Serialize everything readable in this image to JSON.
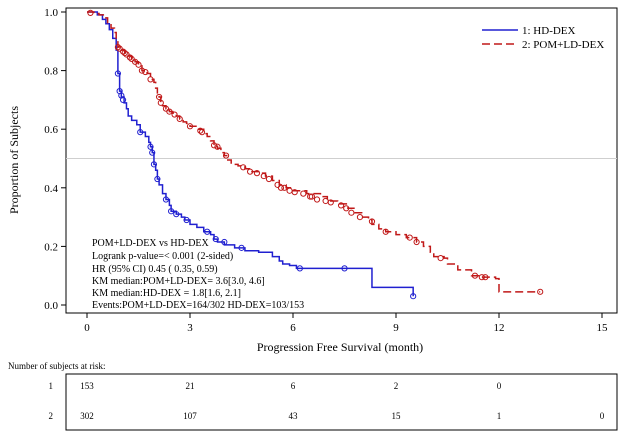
{
  "chart_data": {
    "type": "line",
    "subtype": "kaplan-meier",
    "xlabel": "Progression Free Survival (month)",
    "ylabel": "Proportion of Subjects",
    "xlim": [
      0,
      15
    ],
    "ylim": [
      0,
      1.0
    ],
    "xticks": [
      0,
      3,
      6,
      9,
      12,
      15
    ],
    "yticks": [
      0.0,
      0.2,
      0.4,
      0.6,
      0.8,
      1.0
    ],
    "xtick_labels": [
      "0",
      "3",
      "6",
      "9",
      "12",
      "15"
    ],
    "ytick_labels": [
      "0.0",
      "0.2",
      "0.4",
      "0.6",
      "0.8",
      "1.0"
    ],
    "reference_line_y": 0.5,
    "legend_position": "top-right",
    "series": [
      {
        "name": "1: HD-DEX",
        "color": "#2020d0",
        "dash": "solid",
        "steps": [
          [
            0,
            1.0
          ],
          [
            0.3,
            0.99
          ],
          [
            0.45,
            0.975
          ],
          [
            0.55,
            0.96
          ],
          [
            0.65,
            0.94
          ],
          [
            0.75,
            0.91
          ],
          [
            0.85,
            0.87
          ],
          [
            0.9,
            0.79
          ],
          [
            0.95,
            0.73
          ],
          [
            1.0,
            0.71
          ],
          [
            1.08,
            0.69
          ],
          [
            1.15,
            0.67
          ],
          [
            1.2,
            0.645
          ],
          [
            1.3,
            0.63
          ],
          [
            1.45,
            0.615
          ],
          [
            1.55,
            0.59
          ],
          [
            1.7,
            0.575
          ],
          [
            1.8,
            0.555
          ],
          [
            1.85,
            0.54
          ],
          [
            1.9,
            0.52
          ],
          [
            1.95,
            0.48
          ],
          [
            2.0,
            0.46
          ],
          [
            2.05,
            0.43
          ],
          [
            2.1,
            0.41
          ],
          [
            2.2,
            0.38
          ],
          [
            2.3,
            0.36
          ],
          [
            2.4,
            0.34
          ],
          [
            2.45,
            0.32
          ],
          [
            2.6,
            0.31
          ],
          [
            2.75,
            0.3
          ],
          [
            2.85,
            0.29
          ],
          [
            3.0,
            0.275
          ],
          [
            3.2,
            0.265
          ],
          [
            3.4,
            0.25
          ],
          [
            3.6,
            0.24
          ],
          [
            3.7,
            0.225
          ],
          [
            3.8,
            0.215
          ],
          [
            4.0,
            0.205
          ],
          [
            4.3,
            0.195
          ],
          [
            4.6,
            0.185
          ],
          [
            5.0,
            0.18
          ],
          [
            5.4,
            0.165
          ],
          [
            5.6,
            0.15
          ],
          [
            5.7,
            0.14
          ],
          [
            5.9,
            0.135
          ],
          [
            6.1,
            0.125
          ],
          [
            8.3,
            0.06
          ],
          [
            9.5,
            0.03
          ]
        ],
        "end_x": 9.5,
        "censored": [
          [
            0.9,
            0.79
          ],
          [
            0.95,
            0.73
          ],
          [
            1.0,
            0.715
          ],
          [
            1.05,
            0.7
          ],
          [
            1.55,
            0.59
          ],
          [
            1.85,
            0.54
          ],
          [
            1.9,
            0.52
          ],
          [
            1.95,
            0.48
          ],
          [
            2.05,
            0.43
          ],
          [
            2.3,
            0.36
          ],
          [
            2.45,
            0.32
          ],
          [
            2.6,
            0.31
          ],
          [
            2.9,
            0.29
          ],
          [
            3.5,
            0.25
          ],
          [
            3.75,
            0.225
          ],
          [
            4.0,
            0.215
          ],
          [
            4.5,
            0.195
          ],
          [
            6.2,
            0.125
          ],
          [
            7.5,
            0.125
          ],
          [
            9.5,
            0.03
          ]
        ]
      },
      {
        "name": "2: POM+LD-DEX",
        "color": "#c01818",
        "dash": "dashed",
        "steps": [
          [
            0,
            1.0
          ],
          [
            0.2,
            0.995
          ],
          [
            0.35,
            0.99
          ],
          [
            0.5,
            0.98
          ],
          [
            0.6,
            0.96
          ],
          [
            0.7,
            0.945
          ],
          [
            0.8,
            0.93
          ],
          [
            0.85,
            0.91
          ],
          [
            0.9,
            0.88
          ],
          [
            1.0,
            0.87
          ],
          [
            1.1,
            0.86
          ],
          [
            1.2,
            0.85
          ],
          [
            1.3,
            0.84
          ],
          [
            1.4,
            0.83
          ],
          [
            1.5,
            0.82
          ],
          [
            1.6,
            0.8
          ],
          [
            1.75,
            0.79
          ],
          [
            1.85,
            0.77
          ],
          [
            1.95,
            0.76
          ],
          [
            2.0,
            0.74
          ],
          [
            2.05,
            0.72
          ],
          [
            2.1,
            0.71
          ],
          [
            2.15,
            0.69
          ],
          [
            2.2,
            0.68
          ],
          [
            2.3,
            0.67
          ],
          [
            2.4,
            0.66
          ],
          [
            2.5,
            0.655
          ],
          [
            2.6,
            0.645
          ],
          [
            2.7,
            0.635
          ],
          [
            2.8,
            0.625
          ],
          [
            2.9,
            0.62
          ],
          [
            3.0,
            0.61
          ],
          [
            3.2,
            0.6
          ],
          [
            3.4,
            0.585
          ],
          [
            3.5,
            0.575
          ],
          [
            3.6,
            0.56
          ],
          [
            3.7,
            0.545
          ],
          [
            3.8,
            0.535
          ],
          [
            3.9,
            0.52
          ],
          [
            4.0,
            0.51
          ],
          [
            4.1,
            0.495
          ],
          [
            4.2,
            0.48
          ],
          [
            4.4,
            0.475
          ],
          [
            4.6,
            0.465
          ],
          [
            4.8,
            0.455
          ],
          [
            5.0,
            0.45
          ],
          [
            5.2,
            0.44
          ],
          [
            5.4,
            0.425
          ],
          [
            5.6,
            0.41
          ],
          [
            5.8,
            0.4
          ],
          [
            6.0,
            0.39
          ],
          [
            6.4,
            0.38
          ],
          [
            6.8,
            0.37
          ],
          [
            7.0,
            0.355
          ],
          [
            7.3,
            0.345
          ],
          [
            7.6,
            0.33
          ],
          [
            7.8,
            0.315
          ],
          [
            8.0,
            0.3
          ],
          [
            8.2,
            0.29
          ],
          [
            8.3,
            0.275
          ],
          [
            8.5,
            0.26
          ],
          [
            8.7,
            0.25
          ],
          [
            9.0,
            0.24
          ],
          [
            9.3,
            0.23
          ],
          [
            9.6,
            0.215
          ],
          [
            9.8,
            0.2
          ],
          [
            10.0,
            0.18
          ],
          [
            10.1,
            0.165
          ],
          [
            10.4,
            0.16
          ],
          [
            10.5,
            0.14
          ],
          [
            10.8,
            0.12
          ],
          [
            11.2,
            0.1
          ],
          [
            11.5,
            0.095
          ],
          [
            11.9,
            0.09
          ],
          [
            12.0,
            0.045
          ],
          [
            13.2,
            0.045
          ]
        ],
        "end_x": 13.2,
        "censored": [
          [
            0.1,
            0.997
          ],
          [
            0.9,
            0.88
          ],
          [
            0.95,
            0.875
          ],
          [
            1.05,
            0.865
          ],
          [
            1.1,
            0.86
          ],
          [
            1.15,
            0.855
          ],
          [
            1.25,
            0.845
          ],
          [
            1.3,
            0.84
          ],
          [
            1.4,
            0.83
          ],
          [
            1.5,
            0.82
          ],
          [
            1.6,
            0.8
          ],
          [
            1.7,
            0.795
          ],
          [
            1.85,
            0.77
          ],
          [
            2.1,
            0.71
          ],
          [
            2.15,
            0.69
          ],
          [
            2.3,
            0.67
          ],
          [
            2.4,
            0.66
          ],
          [
            2.55,
            0.65
          ],
          [
            2.7,
            0.635
          ],
          [
            3.0,
            0.61
          ],
          [
            3.3,
            0.595
          ],
          [
            3.35,
            0.59
          ],
          [
            3.7,
            0.545
          ],
          [
            3.8,
            0.54
          ],
          [
            4.05,
            0.51
          ],
          [
            4.55,
            0.47
          ],
          [
            4.75,
            0.455
          ],
          [
            4.95,
            0.45
          ],
          [
            5.15,
            0.44
          ],
          [
            5.3,
            0.43
          ],
          [
            5.55,
            0.41
          ],
          [
            5.65,
            0.4
          ],
          [
            5.75,
            0.4
          ],
          [
            5.9,
            0.39
          ],
          [
            6.05,
            0.385
          ],
          [
            6.3,
            0.38
          ],
          [
            6.5,
            0.37
          ],
          [
            6.55,
            0.37
          ],
          [
            6.7,
            0.36
          ],
          [
            6.95,
            0.355
          ],
          [
            7.1,
            0.35
          ],
          [
            7.4,
            0.34
          ],
          [
            7.55,
            0.33
          ],
          [
            7.7,
            0.315
          ],
          [
            7.95,
            0.3
          ],
          [
            8.3,
            0.285
          ],
          [
            8.7,
            0.25
          ],
          [
            9.4,
            0.23
          ],
          [
            9.6,
            0.215
          ],
          [
            10.3,
            0.16
          ],
          [
            11.3,
            0.1
          ],
          [
            11.5,
            0.095
          ],
          [
            11.6,
            0.095
          ],
          [
            13.2,
            0.045
          ]
        ]
      }
    ],
    "statistics": [
      "POM+LD-DEX vs HD-DEX",
      "Logrank p-value=< 0.001 (2-sided)",
      "HR (95% CI)   0.45 ( 0.35,  0.59)",
      "KM median:POM+LD-DEX=   3.6[3.0, 4.6]",
      "KM median:HD-DEX      =   1.8[1.6, 2.1]",
      "Events:POM+LD-DEX=164/302 HD-DEX=103/153"
    ],
    "risk_table": {
      "title": "Number of subjects at risk:",
      "rows": [
        {
          "label": "1",
          "counts": [
            "153",
            "21",
            "6",
            "2",
            "0"
          ]
        },
        {
          "label": "2",
          "counts": [
            "302",
            "107",
            "43",
            "15",
            "1",
            "0"
          ]
        }
      ]
    }
  }
}
